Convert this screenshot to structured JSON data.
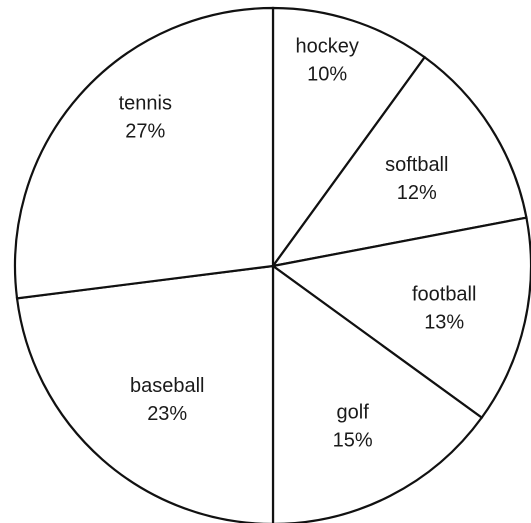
{
  "chart_data": {
    "type": "pie",
    "title": "",
    "slices": [
      {
        "label": "hockey",
        "value": 10,
        "value_label": "10%"
      },
      {
        "label": "softball",
        "value": 12,
        "value_label": "12%"
      },
      {
        "label": "football",
        "value": 13,
        "value_label": "13%"
      },
      {
        "label": "golf",
        "value": 15,
        "value_label": "15%"
      },
      {
        "label": "baseball",
        "value": 23,
        "value_label": "23%"
      },
      {
        "label": "tennis",
        "value": 27,
        "value_label": "27%"
      }
    ],
    "start_angle_degrees": 0,
    "direction": "clockwise",
    "colors": {
      "fill": "#ffffff",
      "stroke": "#111111",
      "text": "#1a1a1a"
    }
  }
}
